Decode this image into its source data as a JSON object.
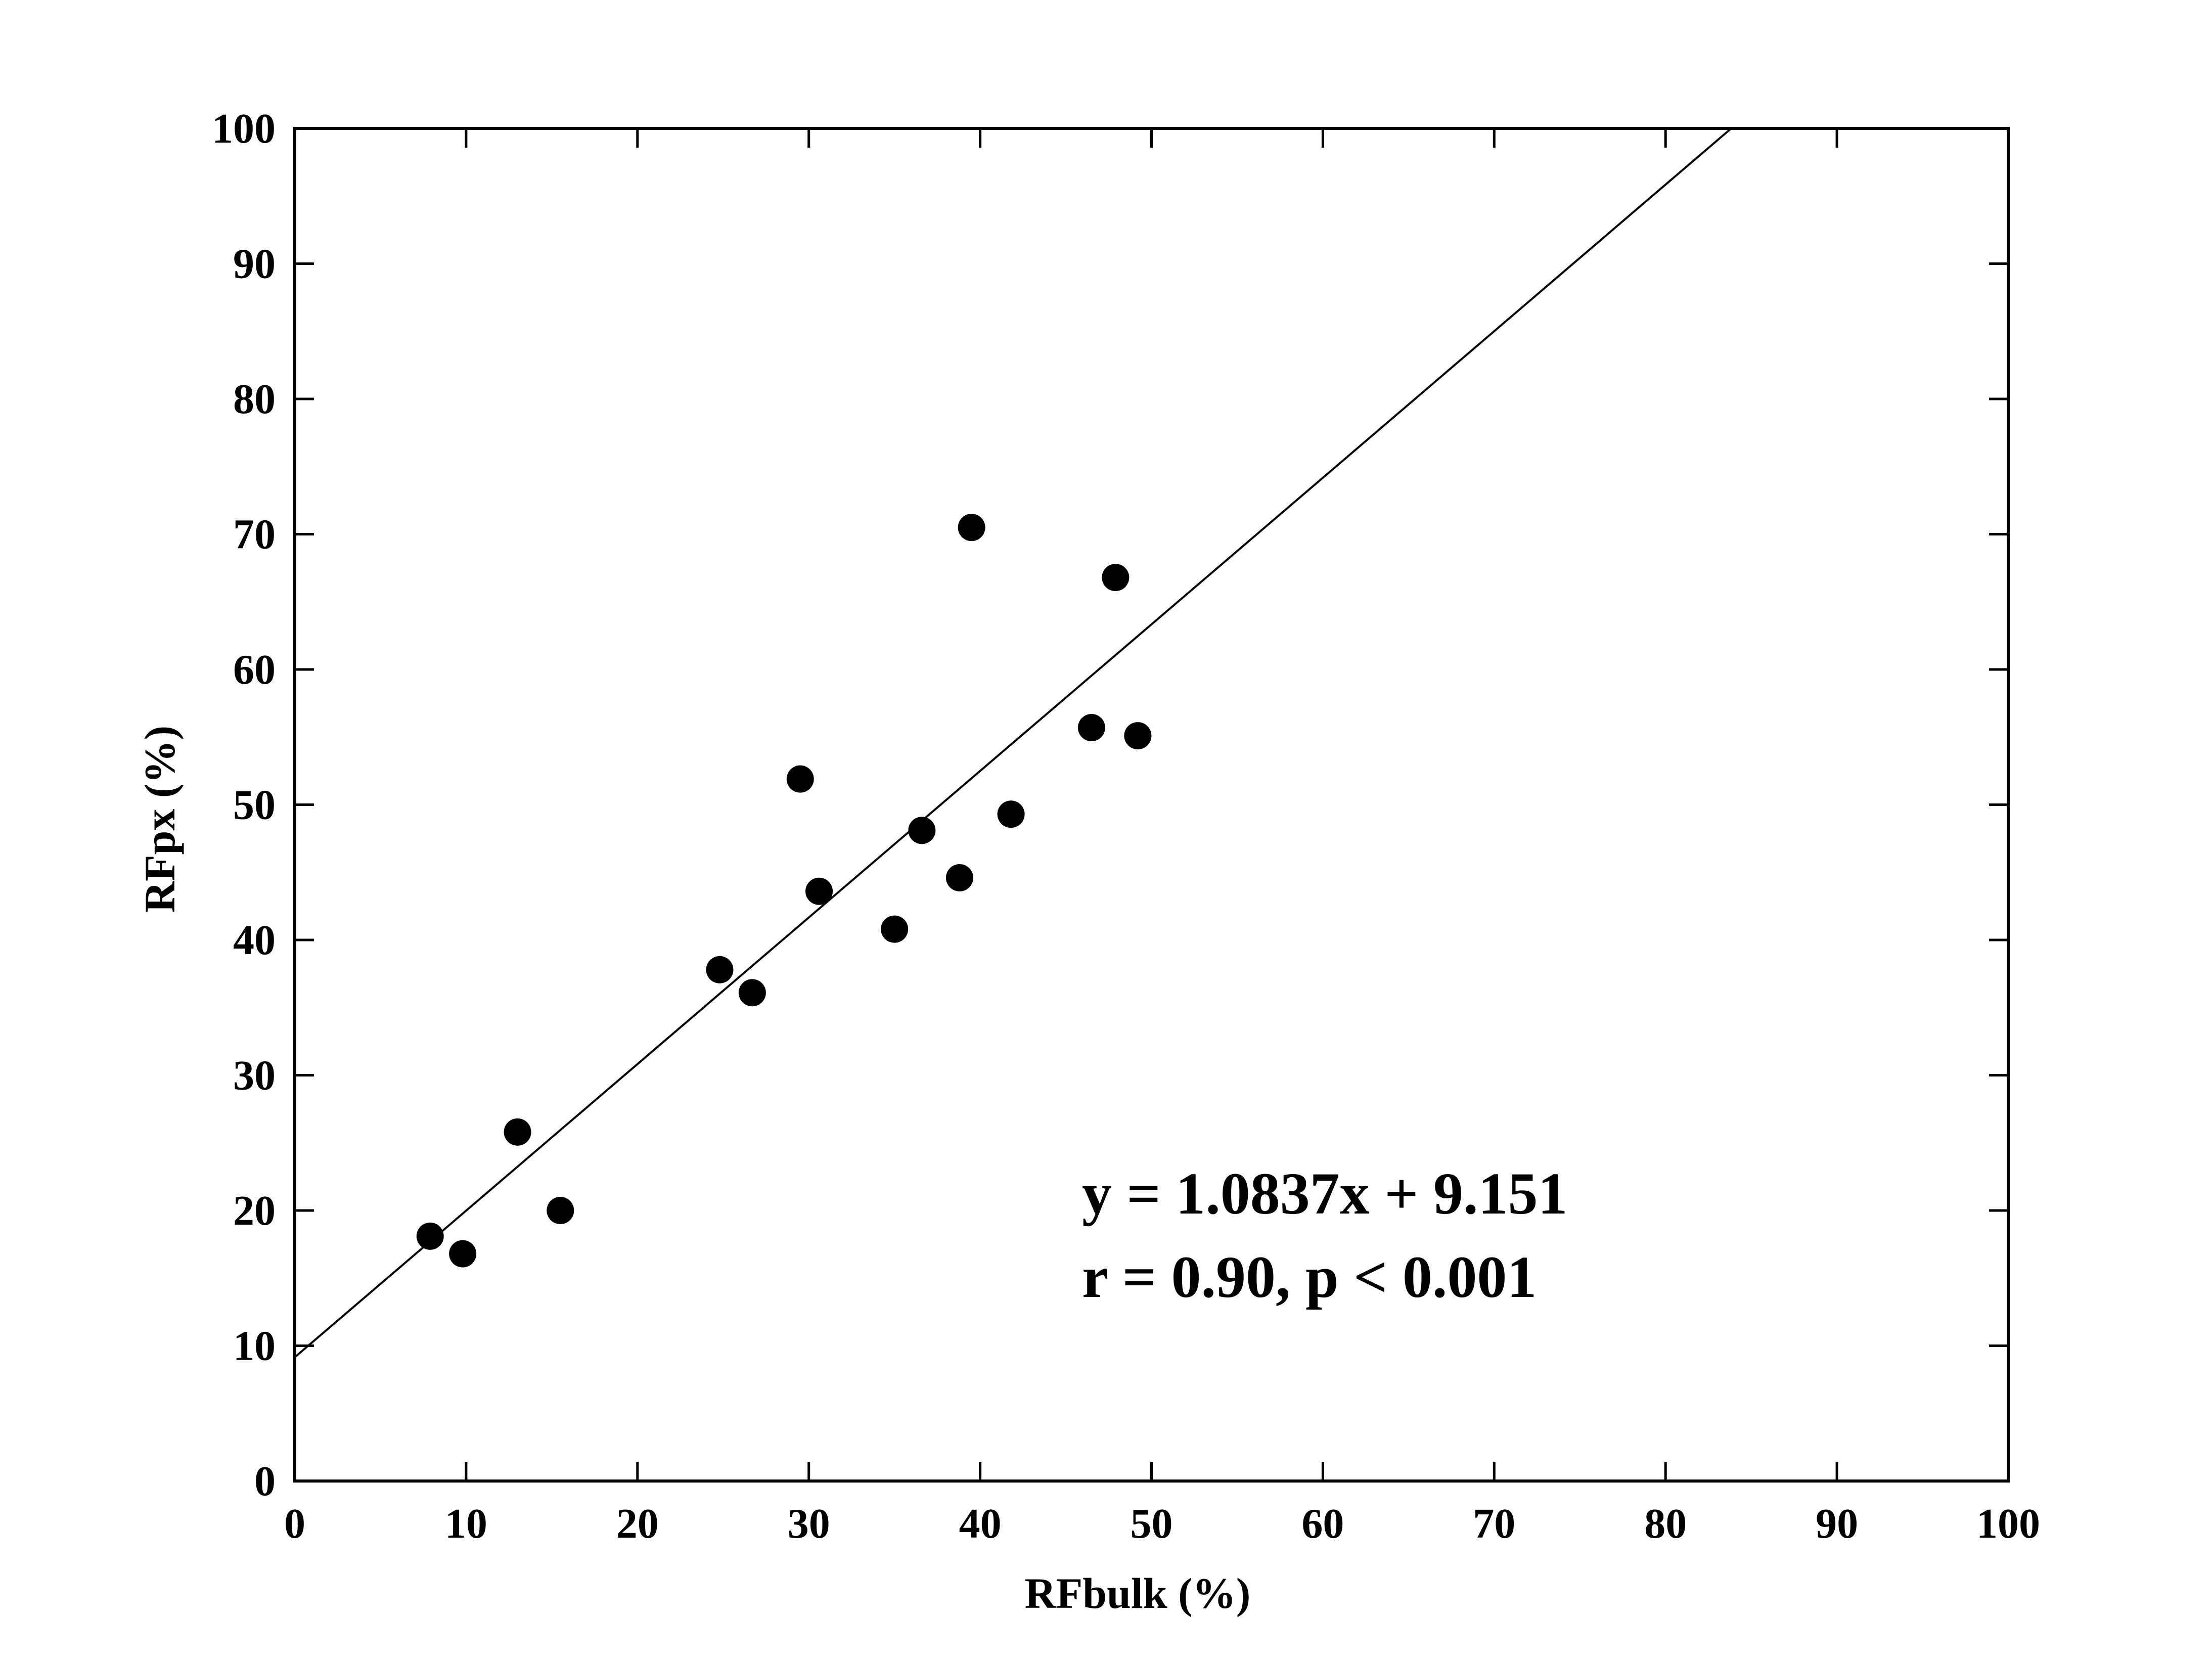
{
  "chart_data": {
    "type": "scatter",
    "title": "",
    "xlabel": "RFbulk (%)",
    "ylabel": "RFpx (%)",
    "xlim": [
      0,
      100
    ],
    "ylim": [
      0,
      100
    ],
    "x_ticks": [
      "0",
      "10",
      "20",
      "30",
      "40",
      "50",
      "60",
      "70",
      "80",
      "90",
      "100"
    ],
    "y_ticks": [
      "0",
      "10",
      "20",
      "30",
      "40",
      "50",
      "60",
      "70",
      "80",
      "90",
      "100"
    ],
    "grid": false,
    "legend": "none",
    "colors": {
      "point": "#000000",
      "line": "#000000",
      "frame": "#000000"
    },
    "series": [
      {
        "x": [
          7.9,
          9.8,
          13.0,
          15.5,
          24.8,
          26.7,
          29.5,
          30.6,
          35.0,
          36.6,
          38.8,
          39.5,
          41.8,
          46.5,
          47.9,
          49.2
        ],
        "y": [
          18.1,
          16.8,
          25.8,
          20.0,
          37.8,
          36.1,
          51.9,
          43.6,
          40.8,
          48.1,
          44.6,
          70.5,
          49.3,
          55.7,
          66.8,
          55.1
        ]
      }
    ],
    "trendline": {
      "slope": 1.0837,
      "intercept": 9.151
    },
    "annotations": [
      "y = 1.0837x + 9.151",
      "r = 0.90, p < 0.001"
    ]
  }
}
